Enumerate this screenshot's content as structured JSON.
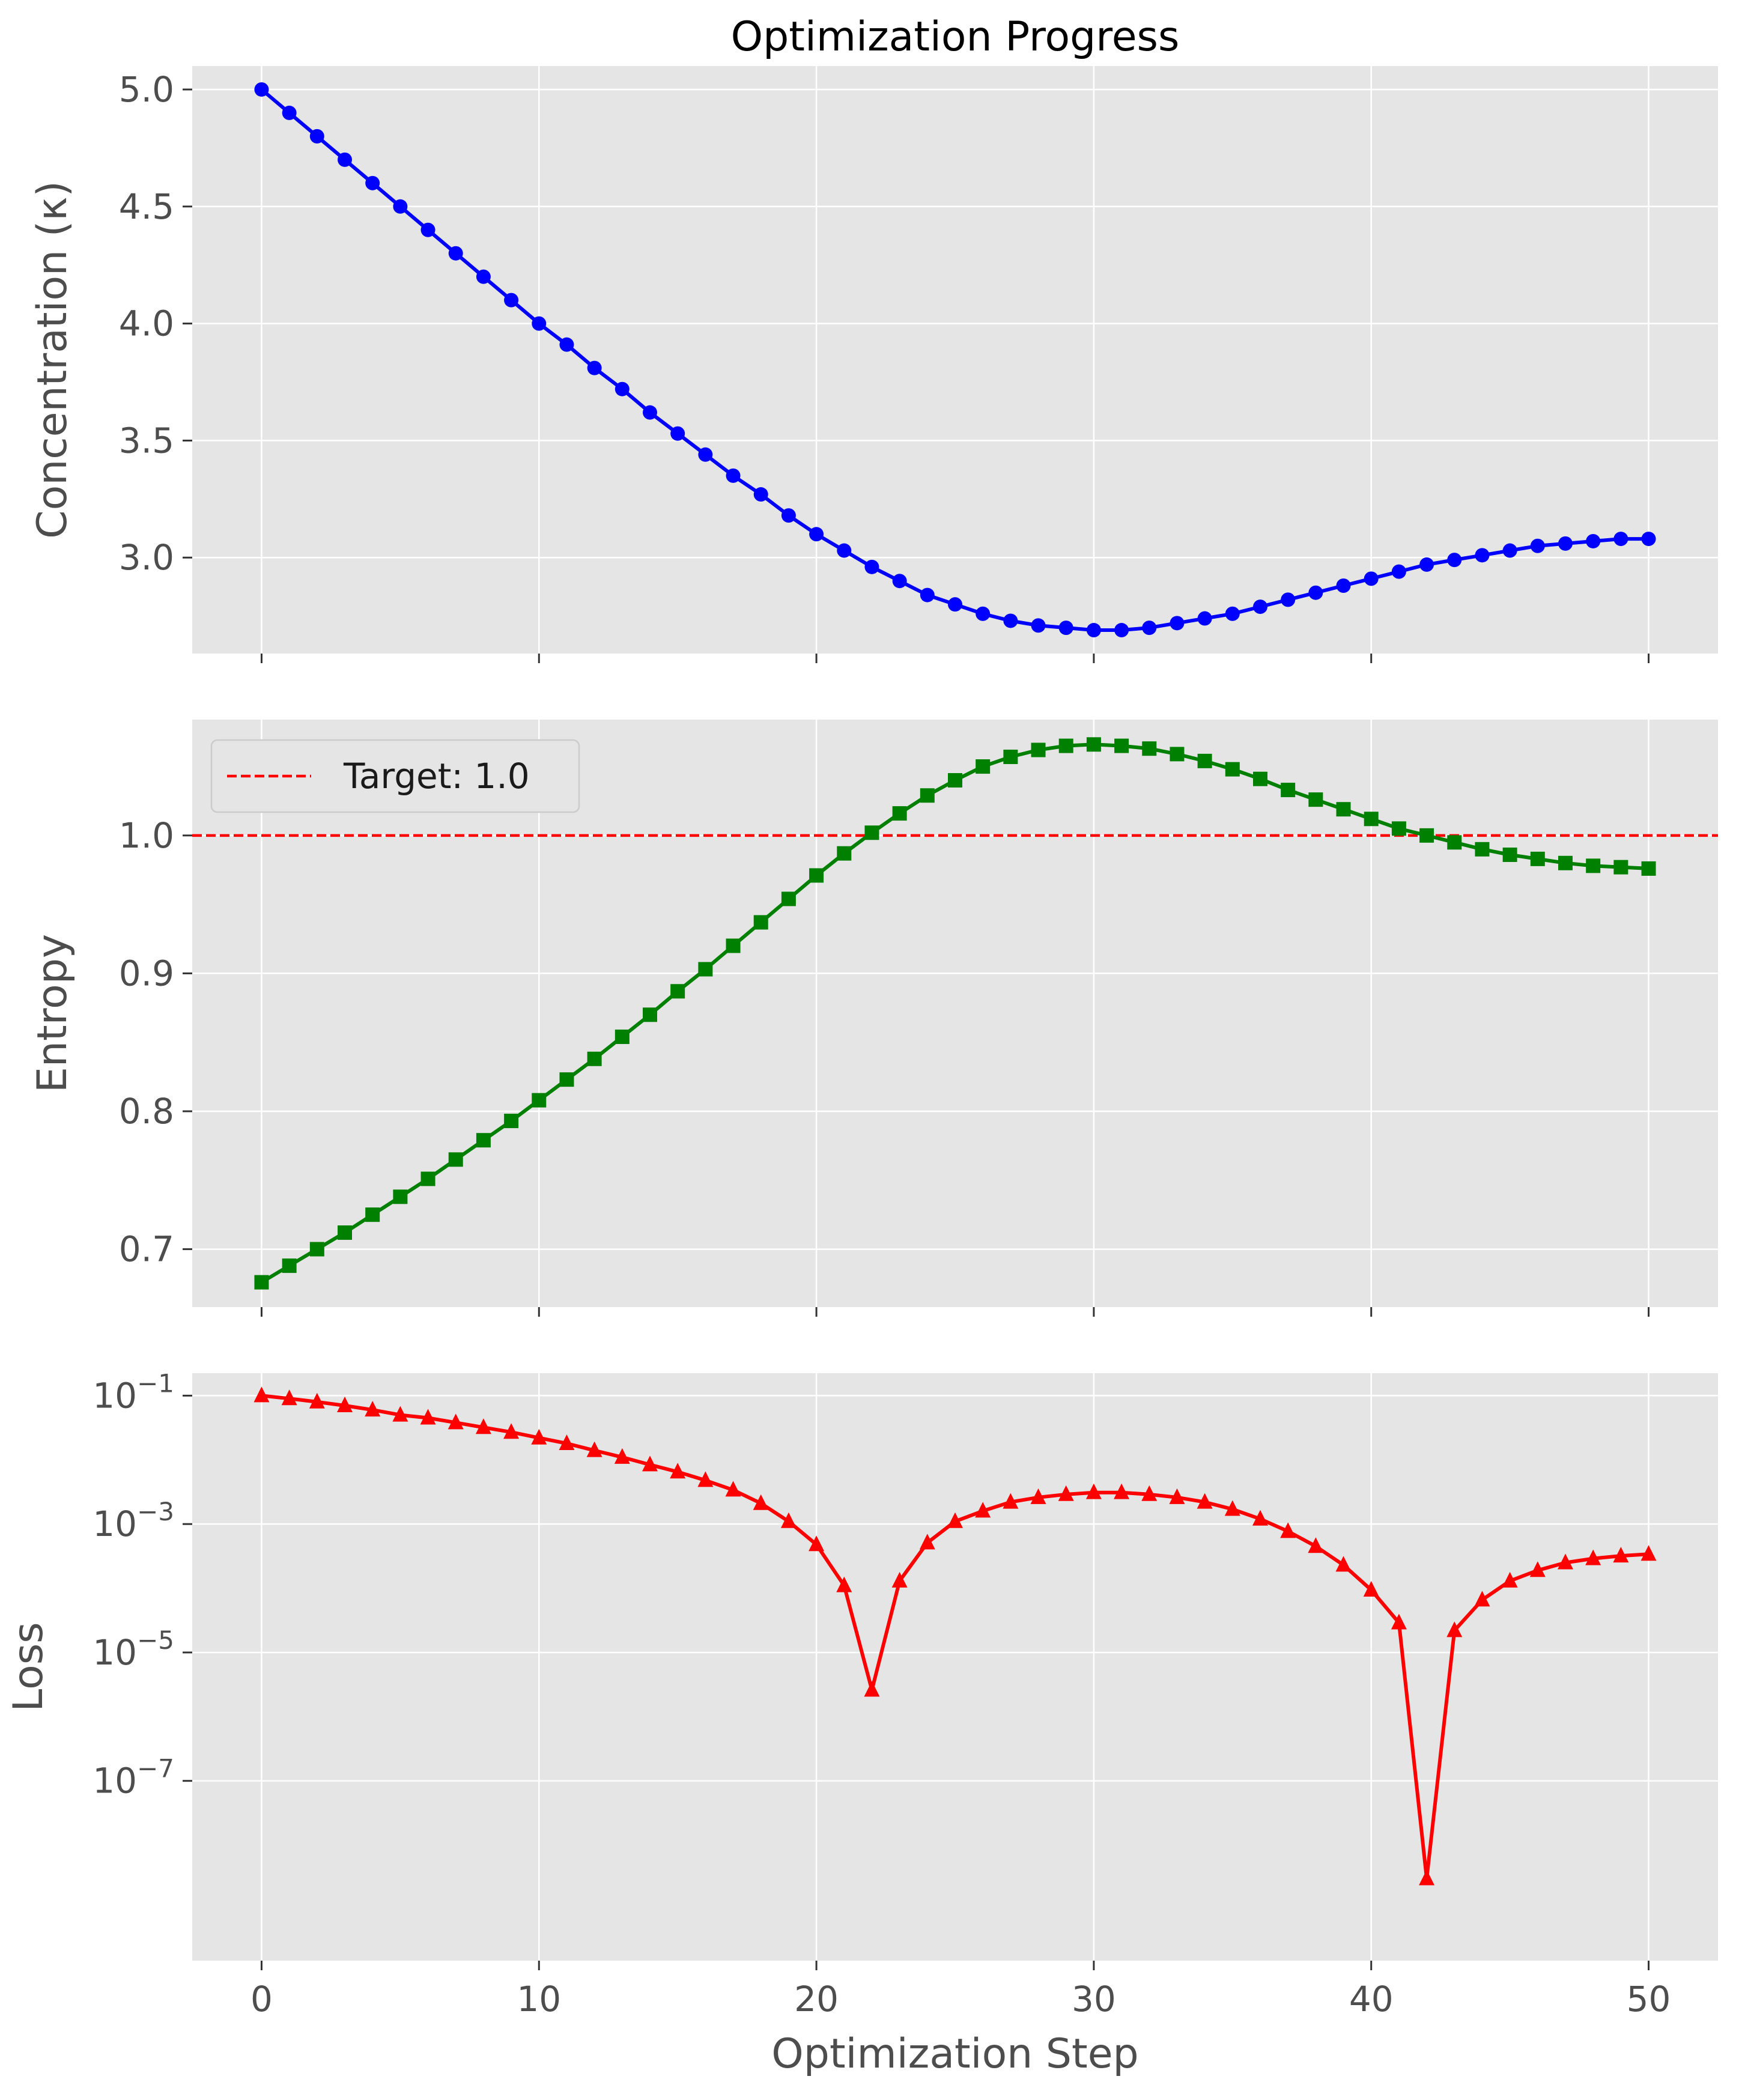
{
  "chart_data": [
    {
      "type": "line",
      "title": "Optimization Progress",
      "xlabel": "",
      "ylabel": "Concentration (κ)",
      "xlim": [
        -2.5,
        52.5
      ],
      "ylim": [
        2.59,
        5.1
      ],
      "grid": true,
      "x_ticks": [
        0,
        10,
        20,
        30,
        40,
        50
      ],
      "x_tick_labels_visible": false,
      "y_ticks": [
        3.0,
        3.5,
        4.0,
        4.5,
        5.0
      ],
      "y_tick_labels": [
        "3.0",
        "3.5",
        "4.0",
        "4.5",
        "5.0"
      ],
      "series": [
        {
          "color": "#0000ff",
          "marker": "circle",
          "x": [
            0,
            1,
            2,
            3,
            4,
            5,
            6,
            7,
            8,
            9,
            10,
            11,
            12,
            13,
            14,
            15,
            16,
            17,
            18,
            19,
            20,
            21,
            22,
            23,
            24,
            25,
            26,
            27,
            28,
            29,
            30,
            31,
            32,
            33,
            34,
            35,
            36,
            37,
            38,
            39,
            40,
            41,
            42,
            43,
            44,
            45,
            46,
            47,
            48,
            49,
            50
          ],
          "values": [
            5.0,
            4.9,
            4.8,
            4.7,
            4.6,
            4.5,
            4.4,
            4.3,
            4.2,
            4.1,
            4.0,
            3.91,
            3.81,
            3.72,
            3.62,
            3.53,
            3.44,
            3.35,
            3.27,
            3.18,
            3.1,
            3.03,
            2.96,
            2.9,
            2.84,
            2.8,
            2.76,
            2.73,
            2.71,
            2.7,
            2.69,
            2.69,
            2.7,
            2.72,
            2.74,
            2.76,
            2.79,
            2.82,
            2.85,
            2.88,
            2.91,
            2.94,
            2.97,
            2.99,
            3.01,
            3.03,
            3.05,
            3.06,
            3.07,
            3.08,
            3.08
          ]
        }
      ]
    },
    {
      "type": "line",
      "title": "",
      "xlabel": "",
      "ylabel": "Entropy",
      "xlim": [
        -2.5,
        52.5
      ],
      "ylim": [
        0.658,
        1.084
      ],
      "grid": true,
      "x_ticks": [
        0,
        10,
        20,
        30,
        40,
        50
      ],
      "x_tick_labels_visible": false,
      "y_ticks": [
        0.7,
        0.8,
        0.9,
        1.0
      ],
      "y_tick_labels": [
        "0.7",
        "0.8",
        "0.9",
        "1.0"
      ],
      "legend_position": "top-left",
      "reference_line": {
        "y": 1.0,
        "label": "Target: 1.0",
        "color": "#ff0000",
        "style": "dashed"
      },
      "series": [
        {
          "color": "#008000",
          "marker": "square",
          "x": [
            0,
            1,
            2,
            3,
            4,
            5,
            6,
            7,
            8,
            9,
            10,
            11,
            12,
            13,
            14,
            15,
            16,
            17,
            18,
            19,
            20,
            21,
            22,
            23,
            24,
            25,
            26,
            27,
            28,
            29,
            30,
            31,
            32,
            33,
            34,
            35,
            36,
            37,
            38,
            39,
            40,
            41,
            42,
            43,
            44,
            45,
            46,
            47,
            48,
            49,
            50
          ],
          "values": [
            0.676,
            0.688,
            0.7,
            0.712,
            0.725,
            0.738,
            0.751,
            0.765,
            0.779,
            0.793,
            0.808,
            0.823,
            0.838,
            0.854,
            0.87,
            0.887,
            0.903,
            0.92,
            0.937,
            0.954,
            0.971,
            0.987,
            1.002,
            1.016,
            1.029,
            1.04,
            1.05,
            1.057,
            1.062,
            1.065,
            1.066,
            1.065,
            1.063,
            1.059,
            1.054,
            1.048,
            1.041,
            1.033,
            1.026,
            1.019,
            1.012,
            1.005,
            1.0,
            0.995,
            0.99,
            0.986,
            0.983,
            0.98,
            0.978,
            0.977,
            0.976
          ]
        }
      ]
    },
    {
      "type": "line",
      "title": "",
      "xlabel": "Optimization Step",
      "ylabel": "Loss",
      "xlim": [
        -2.5,
        52.5
      ],
      "ylim_log10": [
        -9.8,
        -0.65
      ],
      "y_scale": "log",
      "grid": true,
      "x_ticks": [
        0,
        10,
        20,
        30,
        40,
        50
      ],
      "x_tick_labels": [
        "0",
        "10",
        "20",
        "30",
        "40",
        "50"
      ],
      "y_ticks": [
        1e-07,
        1e-05,
        0.001,
        0.1
      ],
      "y_tick_base": "10",
      "y_tick_exponents": [
        "−7",
        "−5",
        "−3",
        "−1"
      ],
      "series": [
        {
          "color": "#ff0000",
          "marker": "triangle",
          "x": [
            0,
            1,
            2,
            3,
            4,
            5,
            6,
            7,
            8,
            9,
            10,
            11,
            12,
            13,
            14,
            15,
            16,
            17,
            18,
            19,
            20,
            21,
            22,
            23,
            24,
            25,
            26,
            27,
            28,
            29,
            30,
            31,
            32,
            33,
            34,
            35,
            36,
            37,
            38,
            39,
            40,
            41,
            42,
            43,
            44,
            45,
            46,
            47,
            48,
            49,
            50
          ],
          "values": [
            0.1,
            0.09,
            0.08,
            0.07,
            0.06,
            0.05,
            0.045,
            0.038,
            0.032,
            0.027,
            0.022,
            0.018,
            0.014,
            0.011,
            0.0084,
            0.0065,
            0.0048,
            0.0034,
            0.0021,
            0.0011,
            0.00048,
            0.00011,
            2.6e-06,
            0.00013,
            0.00051,
            0.0011,
            0.0016,
            0.0022,
            0.0026,
            0.0029,
            0.0031,
            0.0031,
            0.0029,
            0.0026,
            0.0022,
            0.0017,
            0.0012,
            0.00077,
            0.00045,
            0.00023,
            9.4e-05,
            2.9e-05,
            3e-09,
            2.2e-05,
            6.6e-05,
            0.00013,
            0.00019,
            0.00025,
            0.00029,
            0.00032,
            0.00034
          ]
        }
      ]
    }
  ]
}
